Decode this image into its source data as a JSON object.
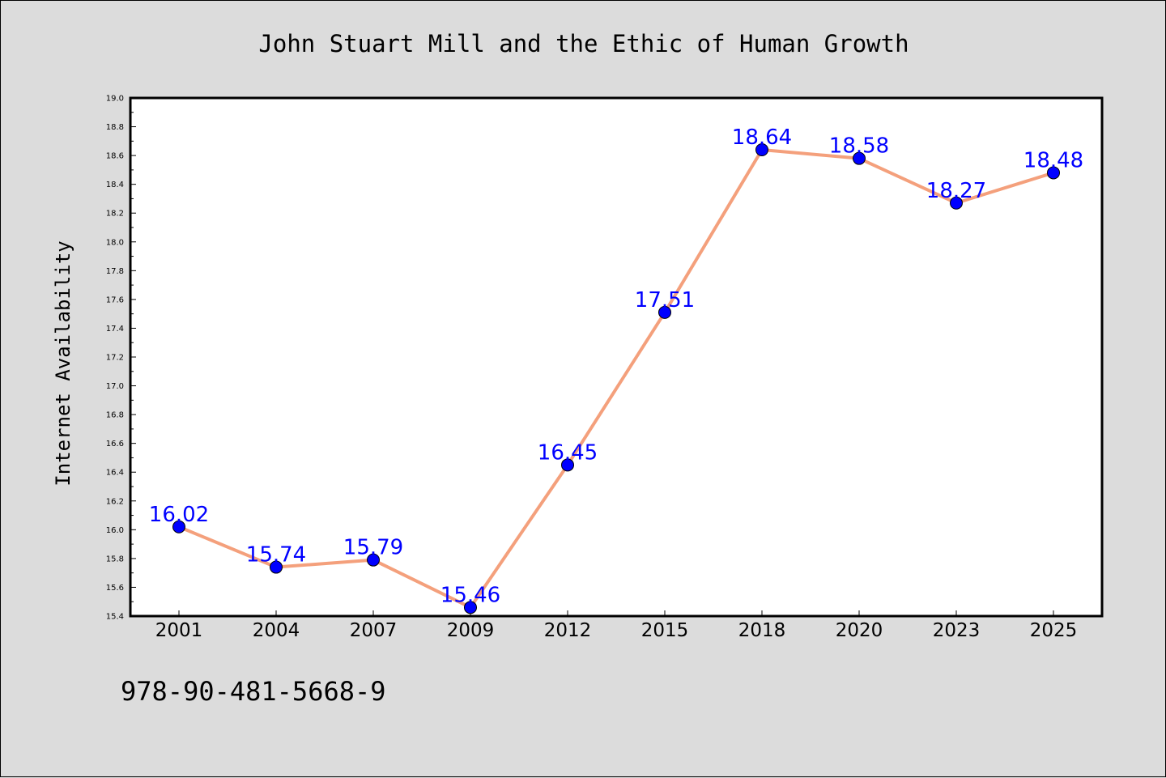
{
  "chart_data": {
    "type": "line",
    "title": "John Stuart Mill and the Ethic of Human Growth",
    "xlabel": "",
    "ylabel": "Internet Availability",
    "categories": [
      "2001",
      "2004",
      "2007",
      "2009",
      "2012",
      "2015",
      "2018",
      "2020",
      "2023",
      "2025"
    ],
    "series": [
      {
        "values": [
          16.02,
          15.74,
          15.79,
          15.46,
          16.45,
          17.51,
          18.64,
          18.58,
          18.27,
          18.48
        ],
        "data_labels": [
          "16.02",
          "15.74",
          "15.79",
          "15.46",
          "16.45",
          "17.51",
          "18.64",
          "18.58",
          "18.27",
          "18.48"
        ],
        "line_color": "#f4a07c",
        "marker_color": "#0000ff"
      }
    ],
    "ylim": [
      15.4,
      19.0
    ],
    "yticks": [
      "15.4",
      "15.6",
      "15.8",
      "16.0",
      "16.2",
      "16.4",
      "16.6",
      "16.8",
      "17.0",
      "17.2",
      "17.4",
      "17.6",
      "17.8",
      "18.0",
      "18.2",
      "18.4",
      "18.6",
      "18.8",
      "19.0"
    ],
    "grid": false,
    "legend": "none"
  },
  "footer": {
    "isbn": "978-90-481-5668-9"
  },
  "colors": {
    "background": "#dcdcdc",
    "plot_background": "#ffffff",
    "label_color": "#0000ff"
  }
}
